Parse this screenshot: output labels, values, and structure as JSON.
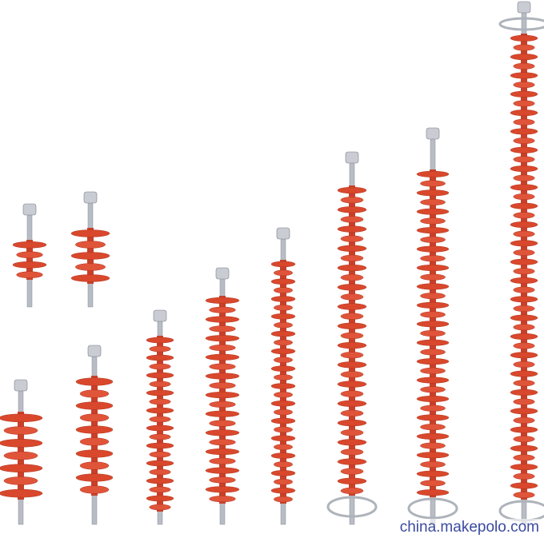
{
  "watermark": "china.makepolo.com"
}
